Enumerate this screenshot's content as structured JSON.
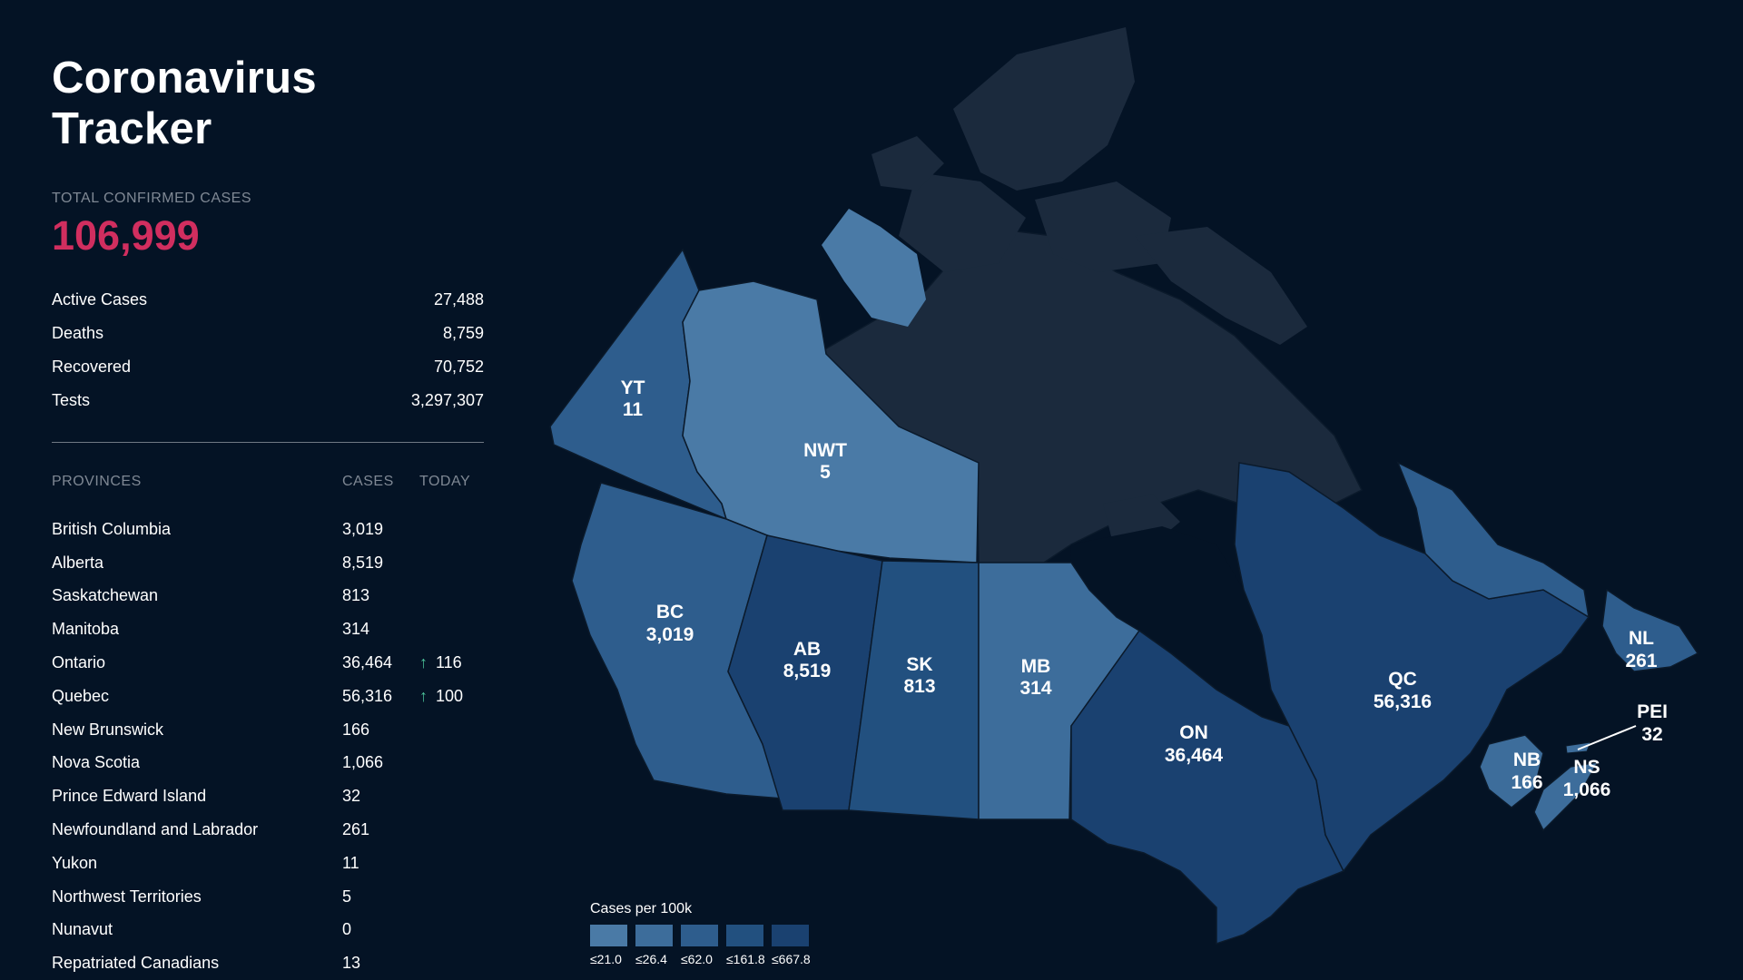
{
  "title": "Coronavirus Tracker",
  "total": {
    "label": "TOTAL CONFIRMED CASES",
    "value": "106,999"
  },
  "stats": [
    {
      "label": "Active Cases",
      "value": "27,488"
    },
    {
      "label": "Deaths",
      "value": "8,759"
    },
    {
      "label": "Recovered",
      "value": "70,752"
    },
    {
      "label": "Tests",
      "value": "3,297,307"
    }
  ],
  "provinces_header": {
    "name": "PROVINCES",
    "cases": "CASES",
    "today": "TODAY"
  },
  "provinces": [
    {
      "name": "British Columbia",
      "cases": "3,019",
      "today": ""
    },
    {
      "name": "Alberta",
      "cases": "8,519",
      "today": ""
    },
    {
      "name": "Saskatchewan",
      "cases": "813",
      "today": ""
    },
    {
      "name": "Manitoba",
      "cases": "314",
      "today": ""
    },
    {
      "name": "Ontario",
      "cases": "36,464",
      "today": "116"
    },
    {
      "name": "Quebec",
      "cases": "56,316",
      "today": "100"
    },
    {
      "name": "New Brunswick",
      "cases": "166",
      "today": ""
    },
    {
      "name": "Nova Scotia",
      "cases": "1,066",
      "today": ""
    },
    {
      "name": "Prince Edward Island",
      "cases": "32",
      "today": ""
    },
    {
      "name": "Newfoundland and Labrador",
      "cases": "261",
      "today": ""
    },
    {
      "name": "Yukon",
      "cases": "11",
      "today": ""
    },
    {
      "name": "Northwest Territories",
      "cases": "5",
      "today": ""
    },
    {
      "name": "Nunavut",
      "cases": "0",
      "today": ""
    },
    {
      "name": "Repatriated Canadians",
      "cases": "13",
      "today": ""
    }
  ],
  "map_labels": {
    "yt": {
      "abbr": "YT",
      "cases": "11"
    },
    "nwt": {
      "abbr": "NWT",
      "cases": "5"
    },
    "bc": {
      "abbr": "BC",
      "cases": "3,019"
    },
    "ab": {
      "abbr": "AB",
      "cases": "8,519"
    },
    "sk": {
      "abbr": "SK",
      "cases": "813"
    },
    "mb": {
      "abbr": "MB",
      "cases": "314"
    },
    "on": {
      "abbr": "ON",
      "cases": "36,464"
    },
    "qc": {
      "abbr": "QC",
      "cases": "56,316"
    },
    "nl": {
      "abbr": "NL",
      "cases": "261"
    },
    "pei": {
      "abbr": "PEI",
      "cases": "32"
    },
    "nb": {
      "abbr": "NB",
      "cases": "166"
    },
    "ns": {
      "abbr": "NS",
      "cases": "1,066"
    }
  },
  "legend": {
    "title": "Cases per 100k",
    "bins": [
      "≤21.0",
      "≤26.4",
      "≤62.0",
      "≤161.8",
      "≤667.8"
    ]
  },
  "colors": {
    "background": "#041325",
    "accent_total": "#d12e5f",
    "trend_up": "#4cc29a",
    "bin_1": "#4a7aa6",
    "bin_2": "#3d6d9b",
    "bin_3": "#2e5d8d",
    "bin_4": "#22507f",
    "bin_5": "#1a4170",
    "nunavut": "#1b2a3d",
    "province_border": "#0b1a2b"
  },
  "icons": {
    "trend": "arrow-up-icon"
  }
}
